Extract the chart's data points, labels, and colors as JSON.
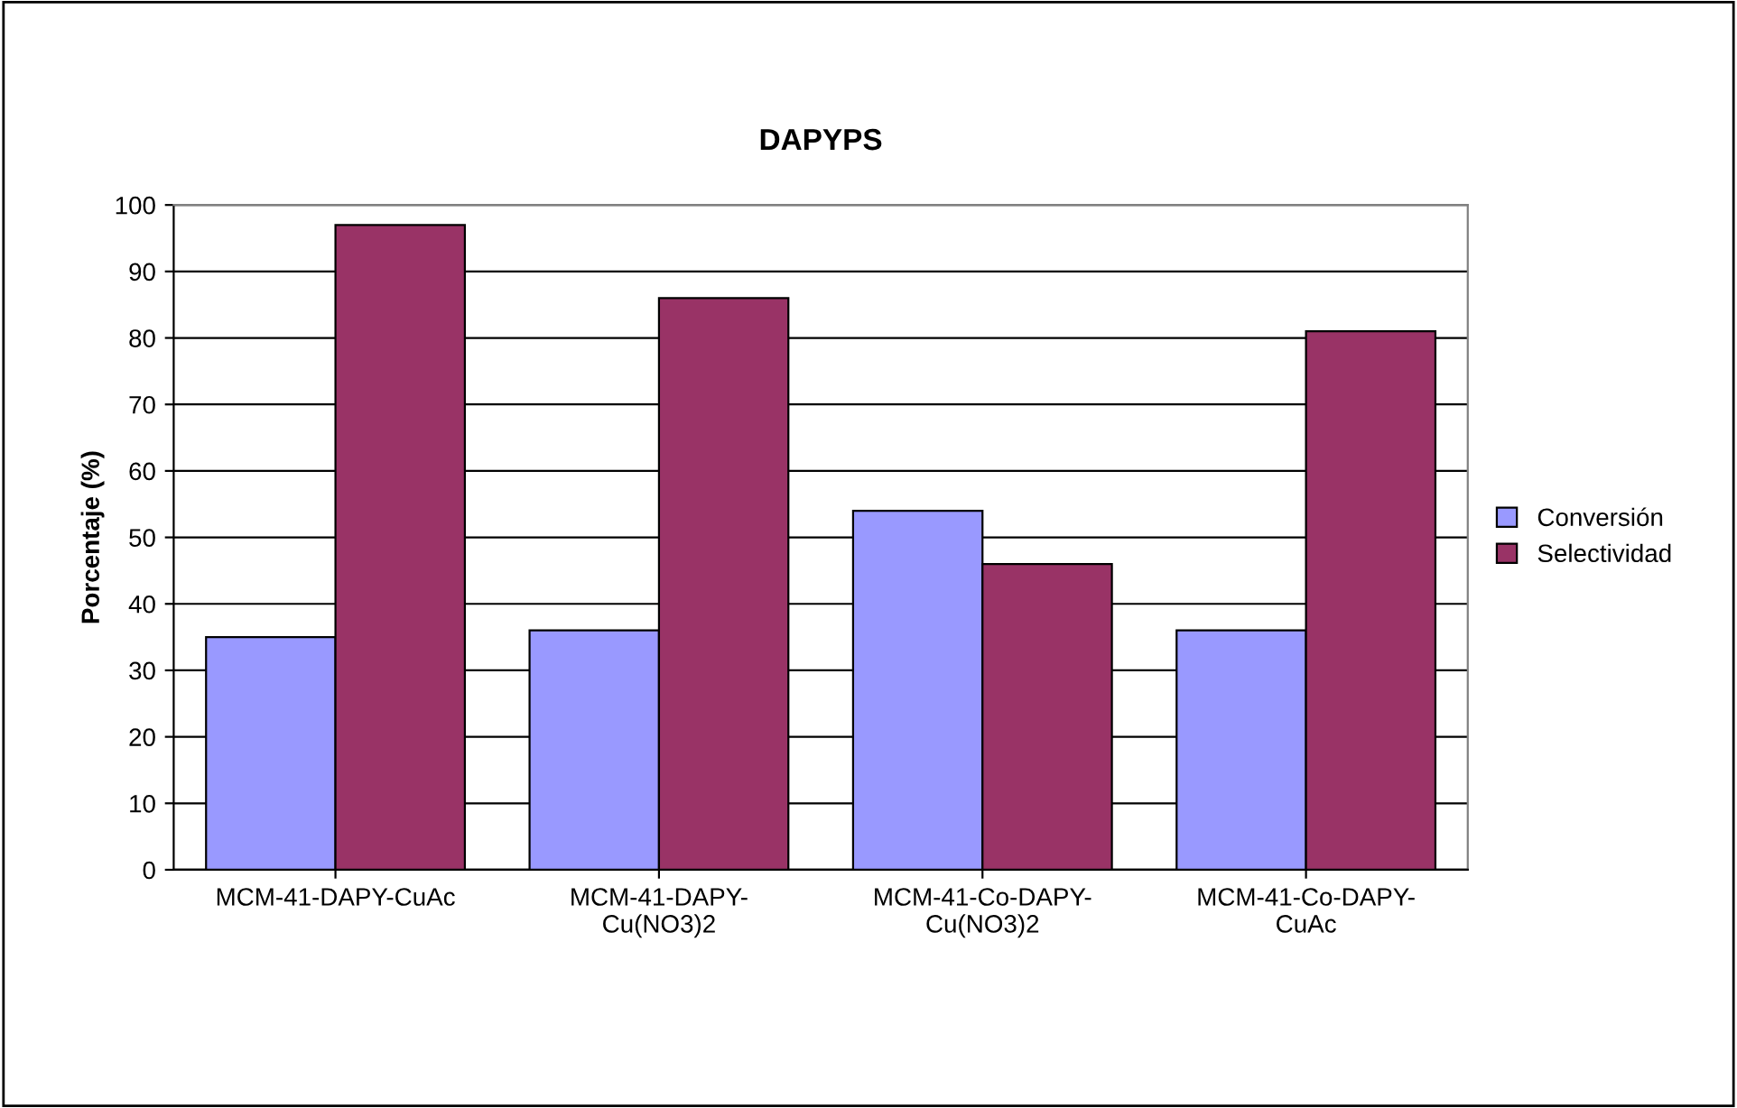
{
  "chart_data": {
    "type": "bar",
    "title": "DAPYPS",
    "ylabel": "Porcentaje (%)",
    "categories": [
      "MCM-41-DAPY-CuAc",
      "MCM-41-DAPY-\nCu(NO3)2",
      "MCM-41-Co-DAPY-\nCu(NO3)2",
      "MCM-41-Co-DAPY-\nCuAc"
    ],
    "series": [
      {
        "name": "Conversión",
        "color": "#9999ff",
        "values": [
          35,
          36,
          54,
          36
        ]
      },
      {
        "name": "Selectividad",
        "color": "#993366",
        "values": [
          97,
          86,
          46,
          81
        ]
      }
    ],
    "ylim": [
      0,
      100
    ],
    "yticks": [
      0,
      10,
      20,
      30,
      40,
      50,
      60,
      70,
      80,
      90,
      100
    ],
    "grid": "y",
    "legend": "right"
  }
}
